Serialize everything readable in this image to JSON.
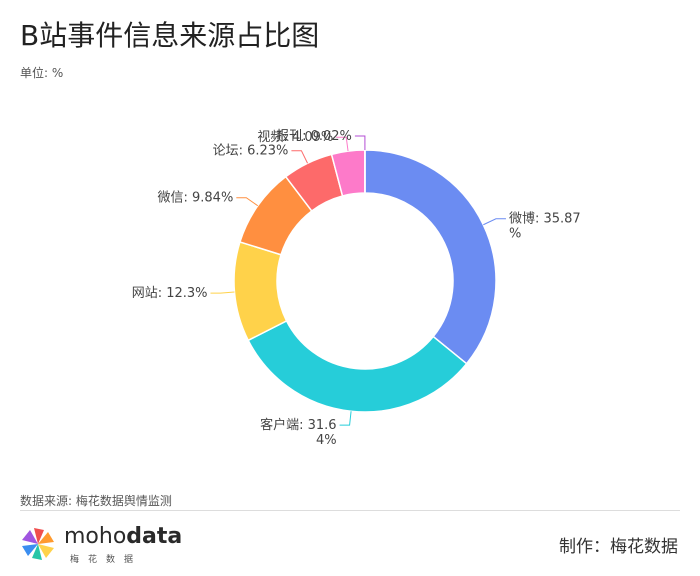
{
  "title": "B站事件信息来源占比图",
  "unit": "单位: %",
  "source": "数据来源: 梅花数据舆情监测",
  "maker": "制作：梅花数据",
  "logo": {
    "name_light": "moho",
    "name_bold": "data",
    "sub": "梅花数据"
  },
  "chart_data": {
    "type": "pie",
    "donut": true,
    "title": "",
    "slices": [
      {
        "name": "微博",
        "value": 35.87,
        "color": "#6b8cf2",
        "label": [
          "微博: 35.87",
          "%"
        ]
      },
      {
        "name": "客户端",
        "value": 31.64,
        "color": "#26cdd9",
        "label": [
          "客户端: 31.6",
          "4%"
        ]
      },
      {
        "name": "网站",
        "value": 12.3,
        "color": "#ffd24a",
        "label": [
          "网站: 12.3%"
        ]
      },
      {
        "name": "微信",
        "value": 9.84,
        "color": "#ff8f40",
        "label": [
          "微信: 9.84%"
        ]
      },
      {
        "name": "论坛",
        "value": 6.23,
        "color": "#fd6a6a",
        "label": [
          "论坛: 6.23%"
        ]
      },
      {
        "name": "视频",
        "value": 4.09,
        "color": "#fd7ac9",
        "label": [
          "视频: 4.09%"
        ]
      },
      {
        "name": "报刊",
        "value": 0.02,
        "color": "#b34dd4",
        "label": [
          "报刊: 0.02%"
        ]
      }
    ]
  }
}
